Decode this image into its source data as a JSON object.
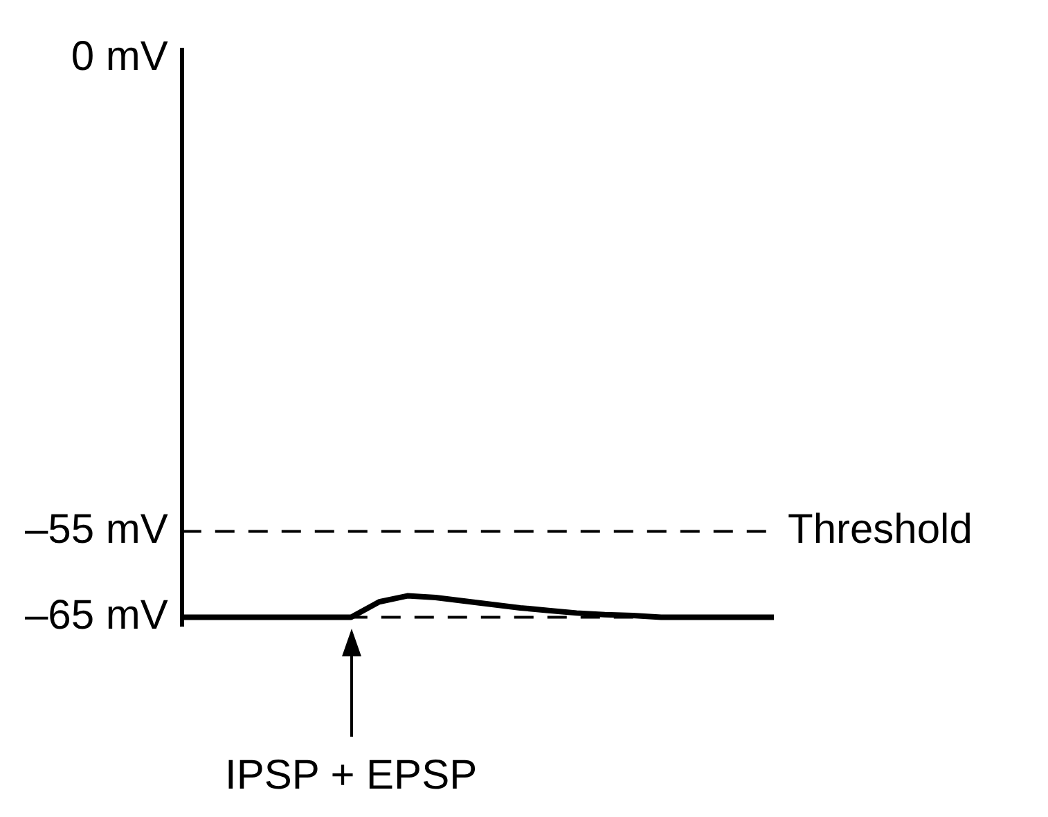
{
  "chart_data": {
    "type": "line",
    "categories": [
      null,
      null,
      null,
      null,
      null,
      null,
      null,
      null,
      null,
      null,
      null,
      null,
      null,
      null,
      null,
      null,
      null,
      null,
      null,
      null,
      null,
      null
    ],
    "series": [
      {
        "color": "#000000",
        "values": [
          -65,
          -65,
          -65,
          -65,
          -65,
          -65,
          -65,
          -63.2,
          -62.5,
          -62.7,
          -63.1,
          -63.5,
          -63.9,
          -64.2,
          -64.5,
          -64.7,
          -64.8,
          -65,
          -65,
          -65,
          -65,
          -65
        ]
      }
    ],
    "ylim": [
      -66,
      1
    ],
    "yticks": [
      {
        "value": 0,
        "label": "0 mV"
      },
      {
        "value": -55,
        "label": "–55 mV"
      },
      {
        "value": -65,
        "label": "–65 mV"
      }
    ],
    "ref_lines": [
      {
        "axis": "y",
        "value": -55,
        "label": "Threshold",
        "color": "#000000",
        "line_style": "dashed"
      },
      {
        "axis": "y",
        "value": -65,
        "label": null,
        "color": "#000000",
        "line_style": "dashed"
      }
    ],
    "annotations": [
      "IPSP + EPSP"
    ],
    "tick_labels": "y",
    "grid": false,
    "legend": false,
    "marker": "none",
    "line_style": "solid"
  }
}
